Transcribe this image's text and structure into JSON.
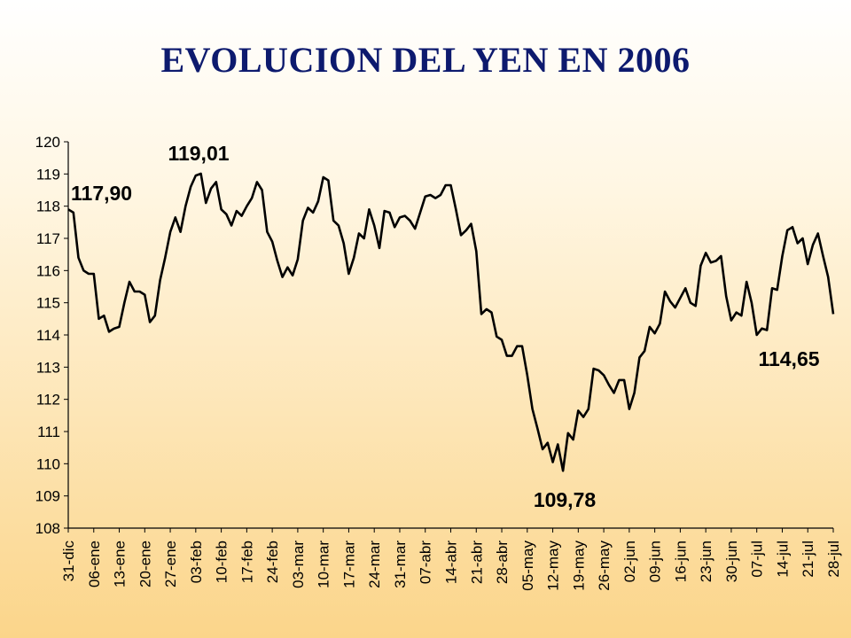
{
  "title": "EVOLUCION DEL YEN EN 2006",
  "chart_data": {
    "type": "line",
    "title": "EVOLUCION DEL YEN EN 2006",
    "xlabel": "",
    "ylabel": "",
    "ylim": [
      108,
      120
    ],
    "grid": false,
    "legend": "none",
    "line_color": "#000000",
    "y_ticks": [
      "108",
      "109",
      "110",
      "111",
      "112",
      "113",
      "114",
      "115",
      "116",
      "117",
      "118",
      "119",
      "120"
    ],
    "x_ticks": [
      "31-dic",
      "06-ene",
      "13-ene",
      "20-ene",
      "27-ene",
      "03-feb",
      "10-feb",
      "17-feb",
      "24-feb",
      "03-mar",
      "10-mar",
      "17-mar",
      "24-mar",
      "31-mar",
      "07-abr",
      "14-abr",
      "21-abr",
      "28-abr",
      "05-may",
      "12-may",
      "19-may",
      "26-may",
      "02-jun",
      "09-jun",
      "16-jun",
      "23-jun",
      "30-jun",
      "07-jul",
      "14-jul",
      "21-jul",
      "28-jul"
    ],
    "values": [
      117.9,
      117.8,
      116.4,
      116.0,
      115.9,
      115.9,
      114.5,
      114.6,
      114.1,
      114.2,
      114.25,
      115.0,
      115.65,
      115.35,
      115.35,
      115.25,
      114.4,
      114.6,
      115.7,
      116.4,
      117.2,
      117.65,
      117.2,
      118.0,
      118.6,
      118.95,
      119.01,
      118.1,
      118.55,
      118.75,
      117.9,
      117.75,
      117.4,
      117.85,
      117.7,
      118.0,
      118.25,
      118.75,
      118.5,
      117.2,
      116.9,
      116.3,
      115.8,
      116.1,
      115.85,
      116.35,
      117.55,
      117.95,
      117.8,
      118.15,
      118.9,
      118.8,
      117.55,
      117.4,
      116.85,
      115.9,
      116.4,
      117.15,
      117.0,
      117.9,
      117.4,
      116.7,
      117.85,
      117.8,
      117.35,
      117.65,
      117.7,
      117.55,
      117.3,
      117.8,
      118.3,
      118.35,
      118.25,
      118.35,
      118.65,
      118.65,
      117.9,
      117.1,
      117.25,
      117.45,
      116.6,
      114.65,
      114.8,
      114.7,
      113.95,
      113.85,
      113.35,
      113.35,
      113.65,
      113.65,
      112.75,
      111.7,
      111.1,
      110.45,
      110.65,
      110.05,
      110.6,
      109.78,
      110.95,
      110.75,
      111.65,
      111.45,
      111.7,
      112.95,
      112.9,
      112.75,
      112.45,
      112.2,
      112.6,
      112.6,
      111.7,
      112.2,
      113.3,
      113.5,
      114.25,
      114.05,
      114.35,
      115.35,
      115.05,
      114.85,
      115.15,
      115.45,
      115.0,
      114.9,
      116.15,
      116.55,
      116.25,
      116.3,
      116.45,
      115.2,
      114.45,
      114.7,
      114.6,
      115.65,
      115.0,
      114.0,
      114.2,
      114.15,
      115.45,
      115.4,
      116.45,
      117.25,
      117.35,
      116.85,
      117.0,
      116.2,
      116.8,
      117.15,
      116.45,
      115.8,
      114.65
    ],
    "annotations": [
      {
        "label": "117,90",
        "value": 117.9
      },
      {
        "label": "119,01",
        "value": 119.01
      },
      {
        "label": "109,78",
        "value": 109.78
      },
      {
        "label": "114,65",
        "value": 114.65
      }
    ]
  }
}
